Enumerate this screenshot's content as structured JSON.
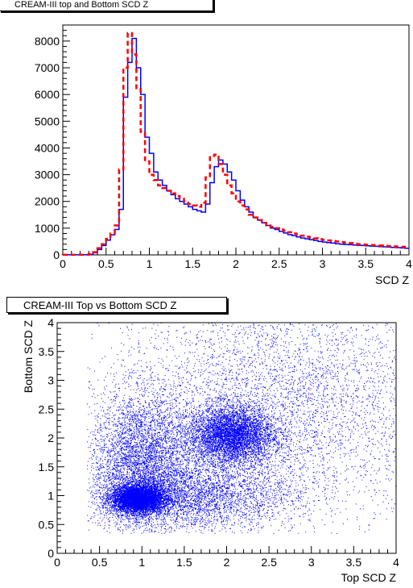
{
  "chart_data": [
    {
      "type": "line",
      "title": "CREAM-III top and Bottom SCD Z",
      "xlabel": "SCD Z",
      "ylabel": "",
      "xlim": [
        0,
        4
      ],
      "ylim": [
        0,
        8600
      ],
      "x_ticks": [
        "0",
        "0.5",
        "1",
        "1.5",
        "2",
        "2.5",
        "3",
        "3.5",
        "4"
      ],
      "y_ticks": [
        "0",
        "1000",
        "2000",
        "3000",
        "4000",
        "5000",
        "6000",
        "7000",
        "8000"
      ],
      "grid": false,
      "legend": "none",
      "bin_width": 0.05,
      "series": [
        {
          "color": "#0000ff",
          "style": "solid",
          "bin_edges_start": [
            0.0,
            0.05,
            0.1,
            0.15,
            0.2,
            0.25,
            0.3,
            0.35,
            0.4,
            0.45,
            0.5,
            0.55,
            0.6,
            0.65,
            0.7,
            0.75,
            0.8,
            0.85,
            0.9,
            0.95,
            1.0,
            1.05,
            1.1,
            1.15,
            1.2,
            1.25,
            1.3,
            1.35,
            1.4,
            1.45,
            1.5,
            1.55,
            1.6,
            1.65,
            1.7,
            1.75,
            1.8,
            1.85,
            1.9,
            1.95,
            2.0,
            2.05,
            2.1,
            2.15,
            2.2,
            2.25,
            2.3,
            2.35,
            2.4,
            2.45,
            2.5,
            2.55,
            2.6,
            2.65,
            2.7,
            2.75,
            2.8,
            2.85,
            2.9,
            2.95,
            3.0,
            3.05,
            3.1,
            3.15,
            3.2,
            3.25,
            3.3,
            3.35,
            3.4,
            3.45,
            3.5,
            3.55,
            3.6,
            3.65,
            3.7,
            3.75,
            3.8,
            3.85,
            3.9,
            3.95
          ],
          "values": [
            5,
            5,
            5,
            5,
            5,
            5,
            20,
            80,
            200,
            350,
            550,
            750,
            950,
            1700,
            5900,
            7200,
            8100,
            7000,
            6000,
            4400,
            3800,
            3100,
            2800,
            2600,
            2400,
            2250,
            2100,
            2000,
            1900,
            1800,
            1700,
            1650,
            1600,
            1900,
            2700,
            3300,
            3550,
            3400,
            3100,
            2800,
            2400,
            2050,
            1800,
            1600,
            1400,
            1300,
            1200,
            1100,
            1000,
            950,
            880,
            820,
            760,
            720,
            670,
            630,
            600,
            570,
            540,
            500,
            480,
            460,
            440,
            420,
            400,
            390,
            380,
            370,
            360,
            350,
            340,
            330,
            320,
            310,
            300,
            290,
            280,
            270,
            260,
            250
          ]
        },
        {
          "color": "#ff0000",
          "style": "dashed",
          "bin_edges_start": [
            0.0,
            0.05,
            0.1,
            0.15,
            0.2,
            0.25,
            0.3,
            0.35,
            0.4,
            0.45,
            0.5,
            0.55,
            0.6,
            0.65,
            0.7,
            0.75,
            0.8,
            0.85,
            0.9,
            0.95,
            1.0,
            1.05,
            1.1,
            1.15,
            1.2,
            1.25,
            1.3,
            1.35,
            1.4,
            1.45,
            1.5,
            1.55,
            1.6,
            1.65,
            1.7,
            1.75,
            1.8,
            1.85,
            1.9,
            1.95,
            2.0,
            2.05,
            2.1,
            2.15,
            2.2,
            2.25,
            2.3,
            2.35,
            2.4,
            2.45,
            2.5,
            2.55,
            2.6,
            2.65,
            2.7,
            2.75,
            2.8,
            2.85,
            2.9,
            2.95,
            3.0,
            3.05,
            3.1,
            3.15,
            3.2,
            3.25,
            3.3,
            3.35,
            3.4,
            3.45,
            3.5,
            3.55,
            3.6,
            3.65,
            3.7,
            3.75,
            3.8,
            3.85,
            3.9,
            3.95
          ],
          "values": [
            5,
            5,
            5,
            5,
            5,
            5,
            30,
            100,
            250,
            400,
            600,
            800,
            1100,
            3200,
            7000,
            8300,
            7500,
            6200,
            4600,
            3500,
            3000,
            2800,
            2600,
            2500,
            2400,
            2300,
            2200,
            2100,
            2000,
            1900,
            1850,
            1800,
            1950,
            2900,
            3700,
            3750,
            3400,
            3000,
            2600,
            2300,
            2000,
            1850,
            1700,
            1500,
            1400,
            1300,
            1200,
            1100,
            1050,
            1000,
            950,
            900,
            850,
            800,
            760,
            720,
            680,
            650,
            620,
            590,
            560,
            540,
            520,
            500,
            480,
            460,
            440,
            420,
            400,
            390,
            380,
            370,
            360,
            350,
            340,
            330,
            320,
            310,
            300,
            290
          ]
        }
      ]
    },
    {
      "type": "scatter",
      "title": "CREAM-III Top vs Bottom SCD Z",
      "xlabel": "Top SCD Z",
      "ylabel": "Bottom SCD Z",
      "xlim": [
        0,
        4
      ],
      "ylim": [
        0,
        4
      ],
      "x_ticks": [
        "0",
        "0.5",
        "1",
        "1.5",
        "2",
        "2.5",
        "3",
        "3.5",
        "4"
      ],
      "y_ticks": [
        "0",
        "0.5",
        "1",
        "1.5",
        "2",
        "2.5",
        "3",
        "3.5",
        "4"
      ],
      "grid": false,
      "legend": "none",
      "point_color": "#0000ff",
      "density_clusters": [
        {
          "center": [
            0.95,
            0.95
          ],
          "spread": [
            0.15,
            0.12
          ],
          "weight": 0.35
        },
        {
          "center": [
            2.05,
            2.05
          ],
          "spread": [
            0.25,
            0.25
          ],
          "weight": 0.2
        },
        {
          "center": [
            1.0,
            1.6
          ],
          "spread": [
            0.3,
            0.6
          ],
          "weight": 0.15
        },
        {
          "center": [
            1.6,
            1.0
          ],
          "spread": [
            0.6,
            0.3
          ],
          "weight": 0.12
        },
        {
          "center": [
            2.6,
            2.6
          ],
          "spread": [
            1.0,
            1.0
          ],
          "weight": 0.18
        }
      ]
    }
  ]
}
